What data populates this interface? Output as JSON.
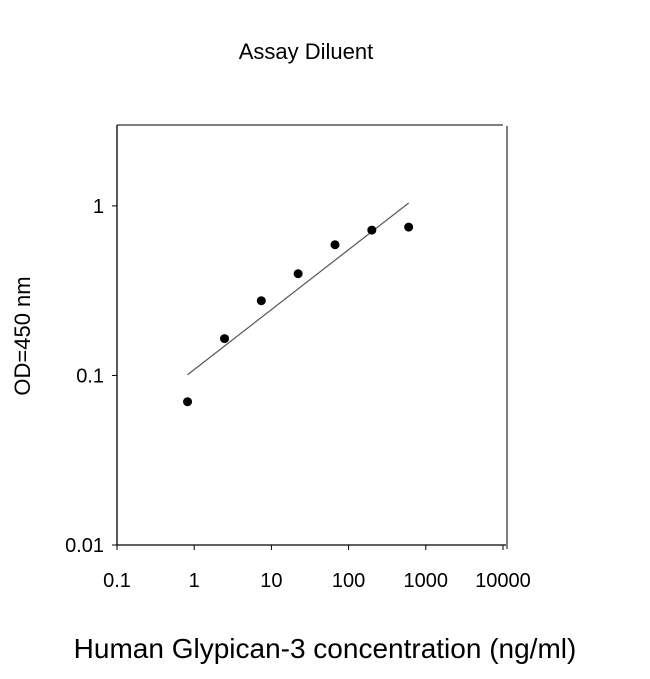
{
  "chart_data": {
    "type": "scatter",
    "title": "Assay Diluent",
    "xlabel": "Human Glypican-3 concentration (ng/ml)",
    "ylabel": "OD=450 nm",
    "xscale": "log",
    "yscale": "log",
    "xlim": [
      0.1,
      10000
    ],
    "ylim": [
      0.01,
      3
    ],
    "xticks": [
      0.1,
      1,
      10,
      100,
      1000,
      10000
    ],
    "xtick_labels": [
      "0.1",
      "1",
      "10",
      "100",
      "1000",
      "10000"
    ],
    "yticks": [
      0.01,
      0.1,
      1
    ],
    "ytick_labels": [
      "0.01",
      "0.1",
      "1"
    ],
    "grid": false,
    "points": {
      "x": [
        0.82,
        2.47,
        7.4,
        22.2,
        66.7,
        200,
        600
      ],
      "y": [
        0.07,
        0.165,
        0.276,
        0.398,
        0.59,
        0.72,
        0.75
      ]
    },
    "fit_line": {
      "x": [
        0.82,
        600
      ],
      "y": [
        0.101,
        1.04
      ]
    },
    "colors": {
      "points": "#000000",
      "line": "#555555",
      "axes": "#000000"
    }
  }
}
